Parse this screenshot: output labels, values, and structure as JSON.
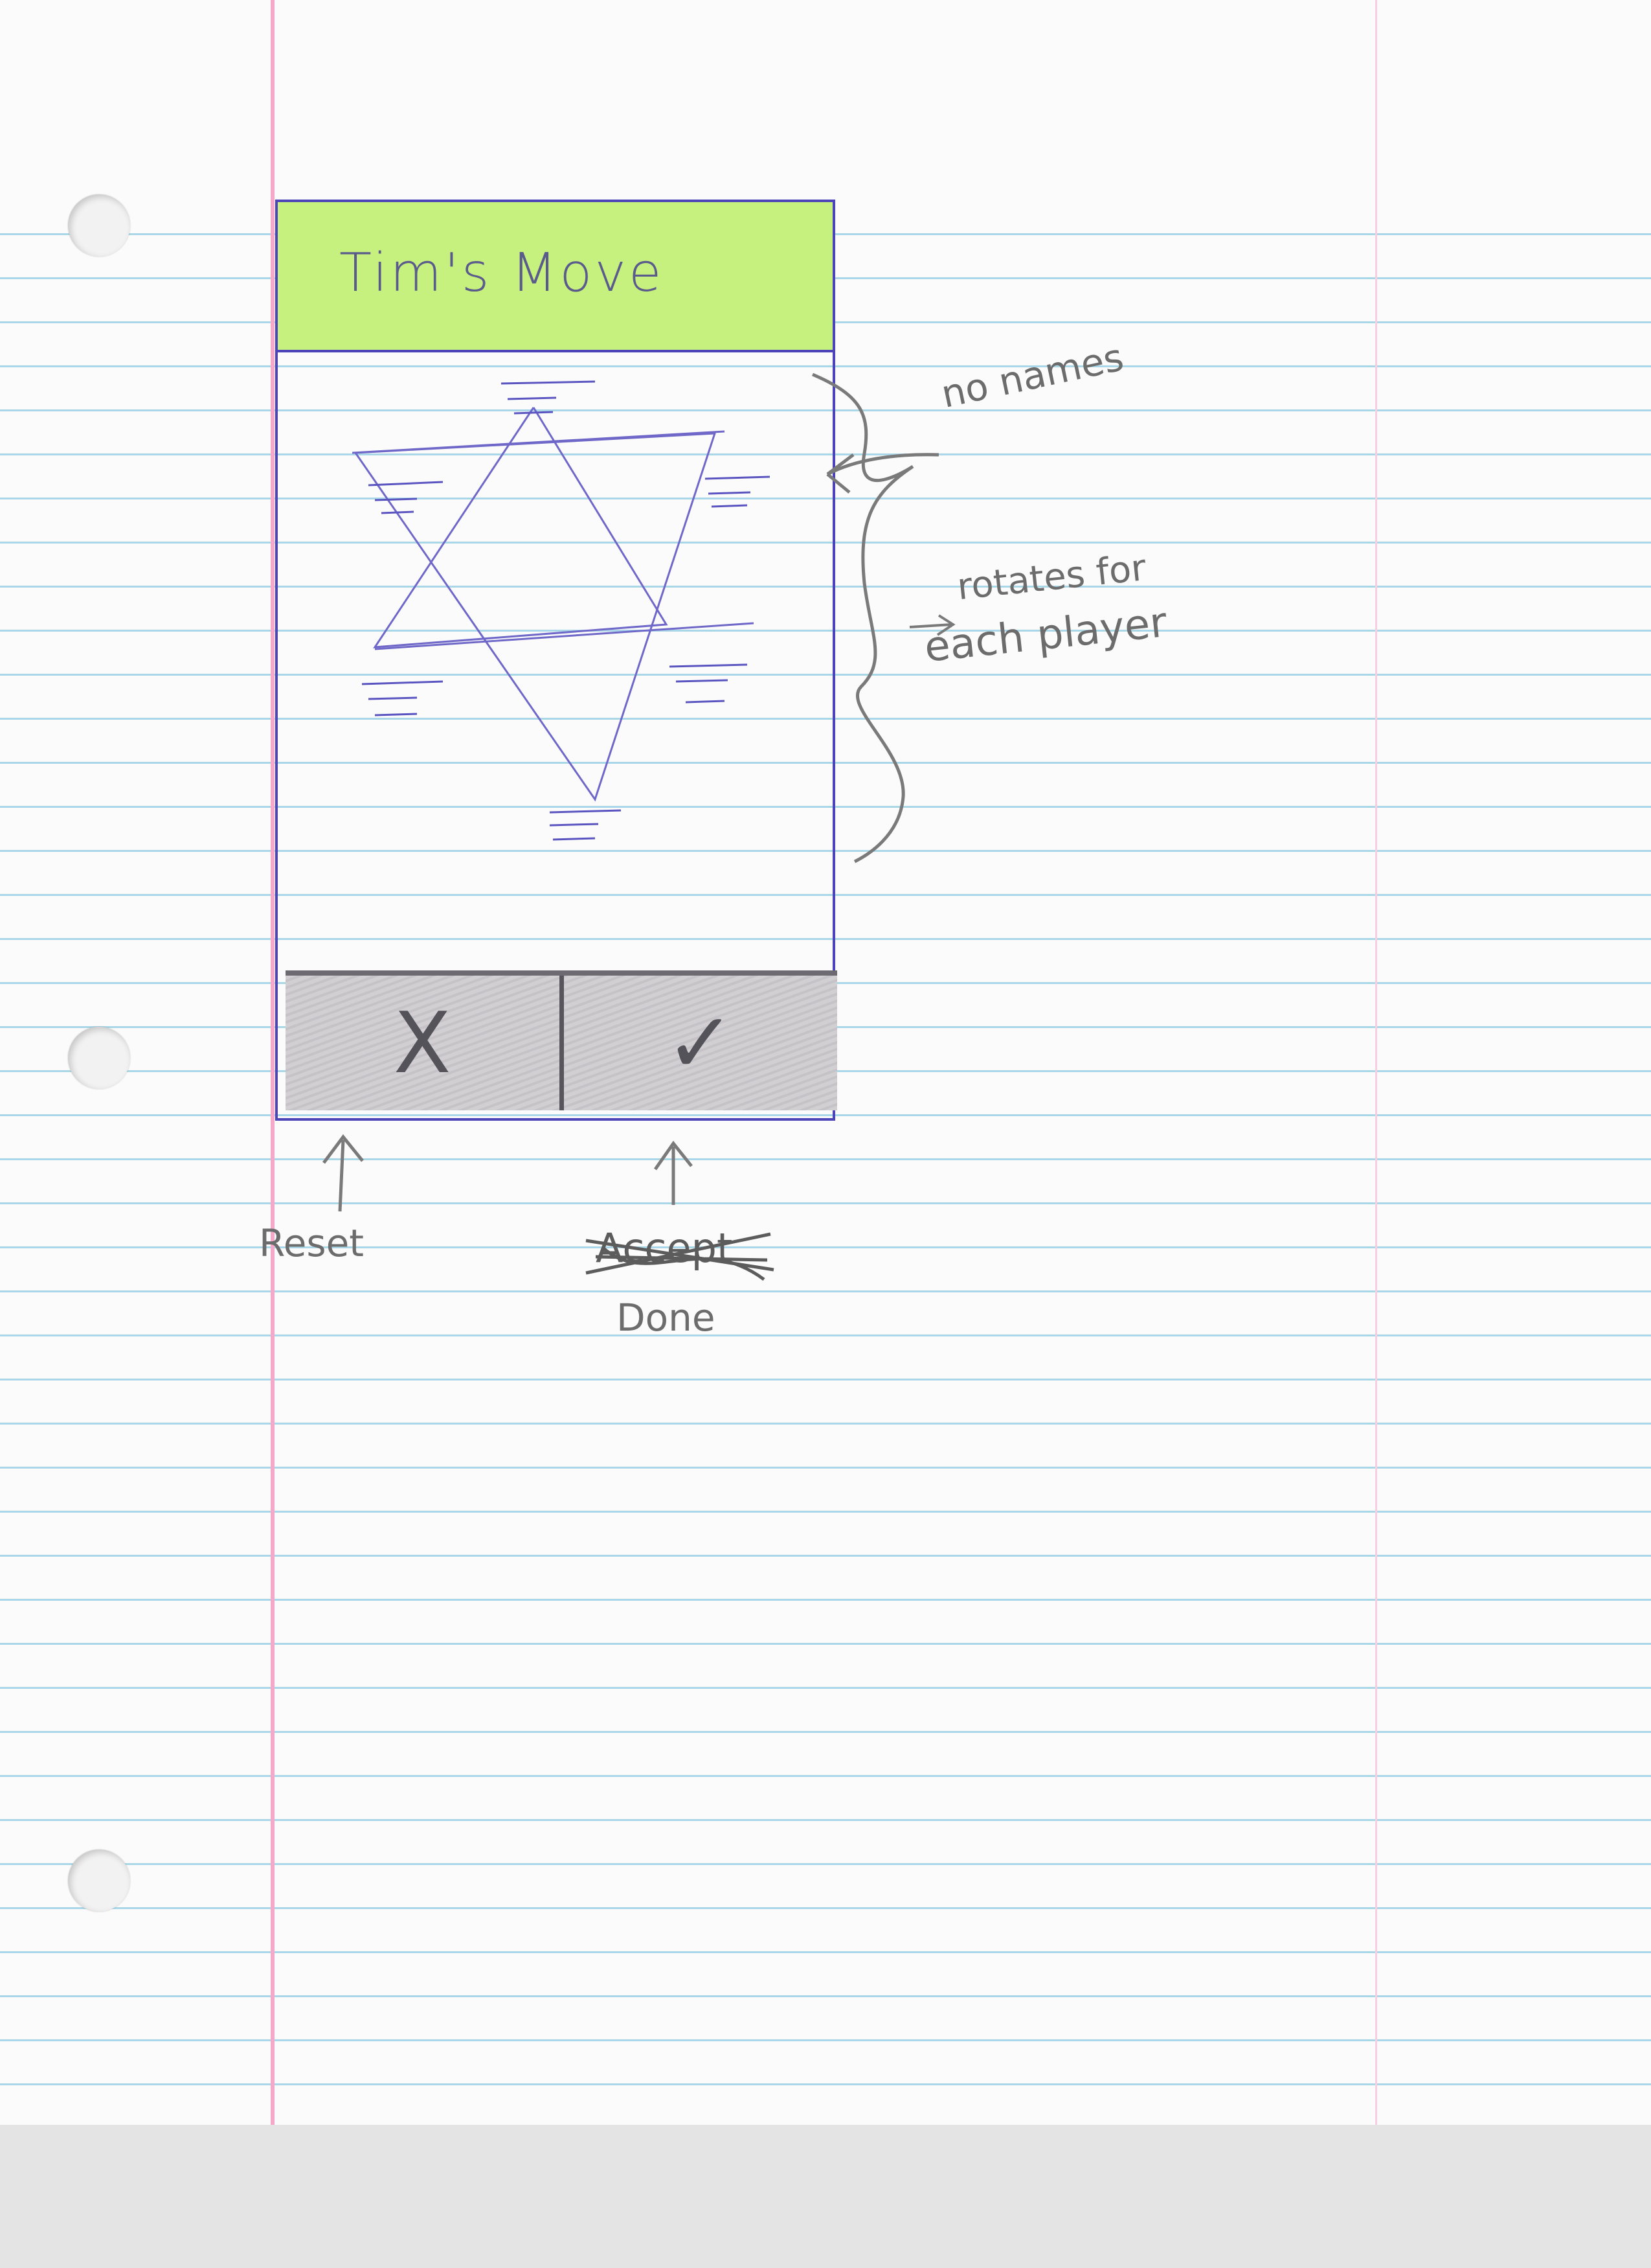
{
  "sketch": {
    "title_bar": {
      "text": "Tim's Move",
      "color": "#c6f17e"
    },
    "board": {
      "shape": "six-pointed star with player name slots at each point"
    },
    "buttons": {
      "reset": {
        "glyph": "X",
        "icon": "x-icon"
      },
      "done": {
        "glyph": "✓",
        "icon": "checkmark-icon"
      }
    },
    "annotations": {
      "no_names": "no names",
      "rotates": "rotates for",
      "each_player": "each player",
      "reset_label": "Reset",
      "accept_struck": "Accept",
      "done_label": "Done"
    }
  },
  "colors": {
    "paper": "#fbfbfb",
    "rule_lines": "#a9d7e8",
    "margin_line": "#f4a9c9",
    "pen": "#4c44b8",
    "pencil": "#6c6c6c",
    "button_bar": "#d2cfd3"
  }
}
